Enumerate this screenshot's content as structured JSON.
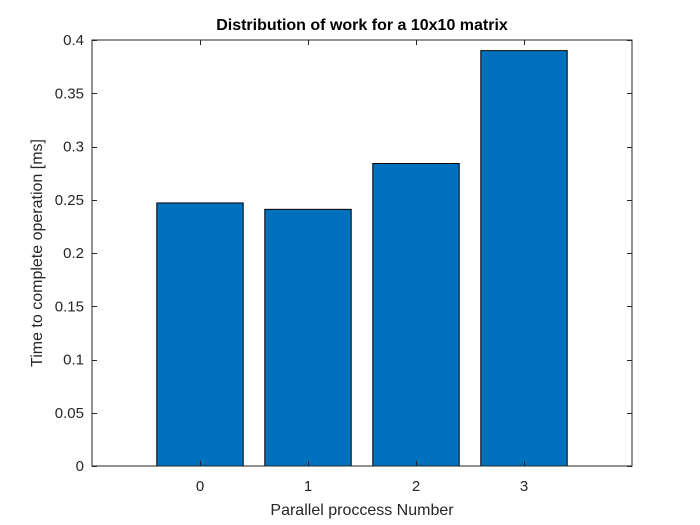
{
  "chart_data": {
    "type": "bar",
    "title": "Distribution of work for a 10x10 matrix",
    "xlabel": "Parallel proccess Number",
    "ylabel": "Time to complete operation [ms]",
    "categories": [
      "0",
      "1",
      "2",
      "3"
    ],
    "values": [
      0.247,
      0.241,
      0.284,
      0.39
    ],
    "xlim": [
      -1,
      4
    ],
    "ylim": [
      0,
      0.4
    ],
    "yticks": [
      0,
      0.05,
      0.1,
      0.15,
      0.2,
      0.25,
      0.3,
      0.35,
      0.4
    ],
    "ytick_labels": [
      "0",
      "0.05",
      "0.1",
      "0.15",
      "0.2",
      "0.25",
      "0.3",
      "0.35",
      "0.4"
    ],
    "grid": false,
    "legend": "none",
    "bar_color": "#0072BD",
    "bar_edge_color": "#000000",
    "axis_color": "#262626"
  }
}
